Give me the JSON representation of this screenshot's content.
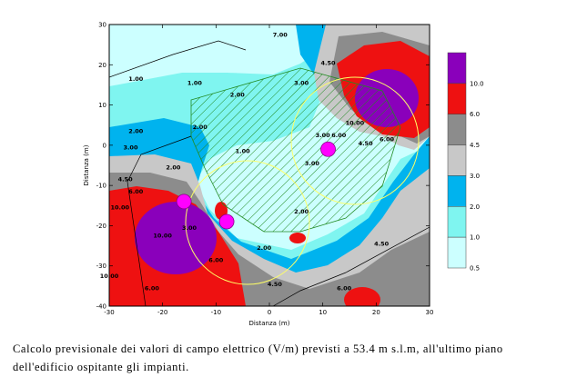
{
  "chart_data": {
    "type": "heatmap",
    "title": "",
    "xlabel": "Distanza (m)",
    "ylabel": "Distanza (m)",
    "xlim": [
      -30,
      30
    ],
    "ylim": [
      -40,
      30
    ],
    "xticks": [
      -30,
      -20,
      -10,
      0,
      10,
      20,
      30
    ],
    "yticks": [
      -40,
      -30,
      -20,
      -10,
      0,
      10,
      20,
      30
    ],
    "legend": {
      "placement": "right",
      "bands": [
        {
          "range": [
            0.5,
            1.0
          ],
          "color": "#ccffff"
        },
        {
          "range": [
            1.0,
            2.0
          ],
          "color": "#7ff5f0"
        },
        {
          "range": [
            2.0,
            3.0
          ],
          "color": "#00b3ee"
        },
        {
          "range": [
            3.0,
            4.5
          ],
          "color": "#c8c8c8"
        },
        {
          "range": [
            4.5,
            6.0
          ],
          "color": "#8c8c8c"
        },
        {
          "range": [
            6.0,
            10.0
          ],
          "color": "#ee1111"
        },
        {
          "range": [
            10.0,
            14.0
          ],
          "color": "#8a00bb"
        }
      ],
      "tick_labels": [
        "0.5",
        "1.0",
        "2.0",
        "3.0",
        "4.5",
        "6.0",
        "10.0"
      ]
    },
    "contour_labels": [
      {
        "text": "1.00",
        "x": -25,
        "y": 16
      },
      {
        "text": "1.00",
        "x": -14,
        "y": 15
      },
      {
        "text": "1.00",
        "x": -5,
        "y": -2
      },
      {
        "text": "2.00",
        "x": -25,
        "y": 3
      },
      {
        "text": "2.00",
        "x": -6,
        "y": 12
      },
      {
        "text": "2.00",
        "x": -13,
        "y": 4
      },
      {
        "text": "2.00",
        "x": -18,
        "y": -6
      },
      {
        "text": "2.00",
        "x": 6,
        "y": -17
      },
      {
        "text": "2.00",
        "x": -1,
        "y": -26
      },
      {
        "text": "3.00",
        "x": -26,
        "y": -1
      },
      {
        "text": "3.00",
        "x": 8,
        "y": -5
      },
      {
        "text": "3.00",
        "x": -15,
        "y": -21
      },
      {
        "text": "3.00",
        "x": 6,
        "y": 15
      },
      {
        "text": "3.00",
        "x": 10,
        "y": 2
      },
      {
        "text": "4.50",
        "x": -27,
        "y": -9
      },
      {
        "text": "4.50",
        "x": 21,
        "y": -25
      },
      {
        "text": "4.50",
        "x": 1,
        "y": -35
      },
      {
        "text": "4.50",
        "x": 18,
        "y": 0
      },
      {
        "text": "4.50",
        "x": 11,
        "y": 20
      },
      {
        "text": "6.00",
        "x": -25,
        "y": -12
      },
      {
        "text": "6.00",
        "x": 13,
        "y": 2
      },
      {
        "text": "6.00",
        "x": 22,
        "y": 1
      },
      {
        "text": "6.00",
        "x": -10,
        "y": -29
      },
      {
        "text": "6.00",
        "x": -22,
        "y": -36
      },
      {
        "text": "6.00",
        "x": 14,
        "y": -36
      },
      {
        "text": "10.00",
        "x": -28,
        "y": -16
      },
      {
        "text": "10.00",
        "x": -30,
        "y": -33
      },
      {
        "text": "10.00",
        "x": 16,
        "y": 5
      },
      {
        "text": "10.00",
        "x": -20,
        "y": -23
      },
      {
        "text": "7.00",
        "x": 2,
        "y": 27
      }
    ],
    "sources": [
      {
        "x": -16,
        "y": -14
      },
      {
        "x": -8,
        "y": -19
      },
      {
        "x": 11,
        "y": -1
      }
    ]
  },
  "caption": "Calcolo previsionale dei valori di campo elettrico (V/m) previsti a 53.4 m s.l.m, all'ultimo piano dell'edificio ospitante gli impianti.",
  "colors": {
    "magenta": "#ff00ff",
    "hatch": "#228b22",
    "yellow": "#ffff66"
  }
}
